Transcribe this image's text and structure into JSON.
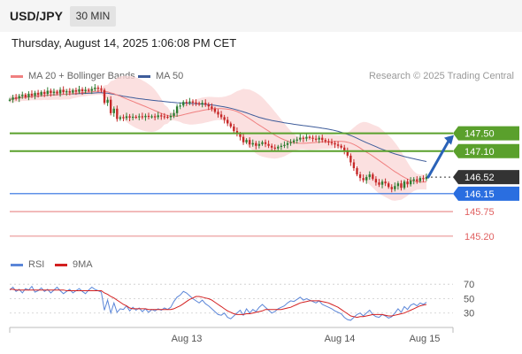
{
  "header": {
    "pair": "USD/JPY",
    "timeframe": "30 MIN"
  },
  "datetime": "Thursday, August 14, 2025 1:06:08 PM CET",
  "legend": {
    "ma20_label": "MA 20 + Bollinger Bands",
    "ma50_label": "MA 50",
    "copyright": "Research © 2025 Trading Central"
  },
  "rsi_legend": {
    "rsi_label": "RSI",
    "ma_label": "9MA"
  },
  "colors": {
    "ma20": "#f08080",
    "bollinger_fill": "#f9d5d5",
    "ma50": "#3e5c9a",
    "candle_up": "#2e7d32",
    "candle_down": "#c62828",
    "resistance": "#5aa02c",
    "support_current": "#2a6ee0",
    "support_other": "#e06060",
    "current_price": "#333333",
    "arrow": "#2a62b8",
    "rsi": "#5b86d8",
    "rsi_ma": "#d32020"
  },
  "chart_data": [
    {
      "type": "candlestick",
      "title": "",
      "x_labels": [
        "Aug 13",
        "Aug 14",
        "Aug 15"
      ],
      "ylim": [
        144.9,
        148.6
      ],
      "levels": [
        {
          "value": 147.5,
          "label": "147.50",
          "kind": "resistance"
        },
        {
          "value": 147.1,
          "label": "147.10",
          "kind": "resistance"
        },
        {
          "value": 146.52,
          "label": "146.52",
          "kind": "current"
        },
        {
          "value": 146.15,
          "label": "146.15",
          "kind": "support_key"
        },
        {
          "value": 145.75,
          "label": "145.75",
          "kind": "support"
        },
        {
          "value": 145.2,
          "label": "145.20",
          "kind": "support"
        }
      ],
      "current_price": 146.52,
      "projection": {
        "from": 146.52,
        "to": 147.5,
        "direction": "up"
      },
      "close_series": [
        148.25,
        148.3,
        148.28,
        148.33,
        148.36,
        148.31,
        148.38,
        148.34,
        148.4,
        148.36,
        148.42,
        148.38,
        148.45,
        148.4,
        148.43,
        148.39,
        148.47,
        148.42,
        148.44,
        148.41,
        148.46,
        148.43,
        148.48,
        148.44,
        148.47,
        148.45,
        148.49,
        148.52,
        148.5,
        148.47,
        148.18,
        148.25,
        147.95,
        148.05,
        147.82,
        147.86,
        147.84,
        147.88,
        147.85,
        147.87,
        147.86,
        147.88,
        147.86,
        147.89,
        147.87,
        147.88,
        147.86,
        147.9,
        147.88,
        147.87,
        147.86,
        147.89,
        147.95,
        148.1,
        148.12,
        148.2,
        148.18,
        148.21,
        148.19,
        148.17,
        148.15,
        148.18,
        148.14,
        148.1,
        148.05,
        147.98,
        147.92,
        147.86,
        147.8,
        147.72,
        147.65,
        147.55,
        147.48,
        147.42,
        147.3,
        147.35,
        147.25,
        147.28,
        147.22,
        147.26,
        147.3,
        147.26,
        147.22,
        147.18,
        147.16,
        147.2,
        147.22,
        147.24,
        147.28,
        147.3,
        147.34,
        147.36,
        147.4,
        147.38,
        147.42,
        147.4,
        147.38,
        147.36,
        147.4,
        147.35,
        147.32,
        147.3,
        147.28,
        147.25,
        147.22,
        147.18,
        147.1,
        147.0,
        146.85,
        146.72,
        146.58,
        146.5,
        146.45,
        146.52,
        146.58,
        146.48,
        146.4,
        146.35,
        146.42,
        146.38,
        146.3,
        146.25,
        146.32,
        146.38,
        146.28,
        146.42,
        146.36,
        146.44,
        146.47,
        146.43,
        146.5,
        146.48,
        146.52
      ]
    },
    {
      "type": "line",
      "title": "",
      "y_ticks": [
        70,
        50,
        30
      ],
      "ylim": [
        10,
        85
      ],
      "series": [
        {
          "name": "RSI",
          "values": [
            62,
            66,
            60,
            63,
            58,
            64,
            62,
            67,
            59,
            61,
            65,
            60,
            63,
            58,
            62,
            66,
            61,
            57,
            60,
            63,
            58,
            61,
            64,
            60,
            57,
            62,
            66,
            63,
            61,
            59,
            34,
            48,
            30,
            44,
            31,
            36,
            35,
            40,
            33,
            38,
            34,
            37,
            32,
            36,
            31,
            35,
            33,
            36,
            34,
            37,
            35,
            38,
            46,
            52,
            55,
            60,
            58,
            54,
            50,
            47,
            44,
            48,
            43,
            40,
            36,
            32,
            28,
            27,
            30,
            24,
            22,
            26,
            30,
            34,
            27,
            36,
            30,
            35,
            32,
            38,
            42,
            38,
            34,
            30,
            32,
            36,
            38,
            40,
            44,
            47,
            46,
            49,
            52,
            48,
            50,
            48,
            46,
            44,
            47,
            42,
            40,
            38,
            36,
            33,
            31,
            29,
            24,
            21,
            20,
            24,
            28,
            30,
            26,
            30,
            34,
            28,
            25,
            24,
            28,
            26,
            23,
            25,
            30,
            36,
            31,
            39,
            35,
            41,
            43,
            40,
            44,
            42,
            45
          ]
        },
        {
          "name": "9MA",
          "values": [
            63,
            63,
            62,
            62,
            62,
            62,
            62,
            62,
            62,
            62,
            62,
            62,
            62,
            62,
            62,
            62,
            62,
            62,
            61,
            61,
            61,
            61,
            61,
            61,
            61,
            61,
            61,
            61,
            61,
            61,
            58,
            56,
            53,
            51,
            48,
            45,
            42,
            40,
            37,
            36,
            36,
            36,
            36,
            36,
            35,
            35,
            35,
            35,
            35,
            35,
            35,
            35,
            36,
            38,
            40,
            43,
            46,
            49,
            51,
            53,
            53,
            52,
            51,
            50,
            48,
            45,
            42,
            39,
            36,
            33,
            31,
            29,
            28,
            28,
            28,
            29,
            29,
            30,
            31,
            32,
            33,
            35,
            35,
            35,
            35,
            35,
            35,
            36,
            37,
            38,
            40,
            42,
            44,
            45,
            46,
            47,
            47,
            47,
            47,
            46,
            45,
            44,
            42,
            40,
            38,
            35,
            32,
            29,
            26,
            25,
            24,
            25,
            25,
            26,
            27,
            28,
            28,
            28,
            28,
            27,
            26,
            26,
            27,
            28,
            29,
            30,
            32,
            34,
            36,
            38,
            40,
            41,
            42
          ]
        }
      ]
    }
  ]
}
